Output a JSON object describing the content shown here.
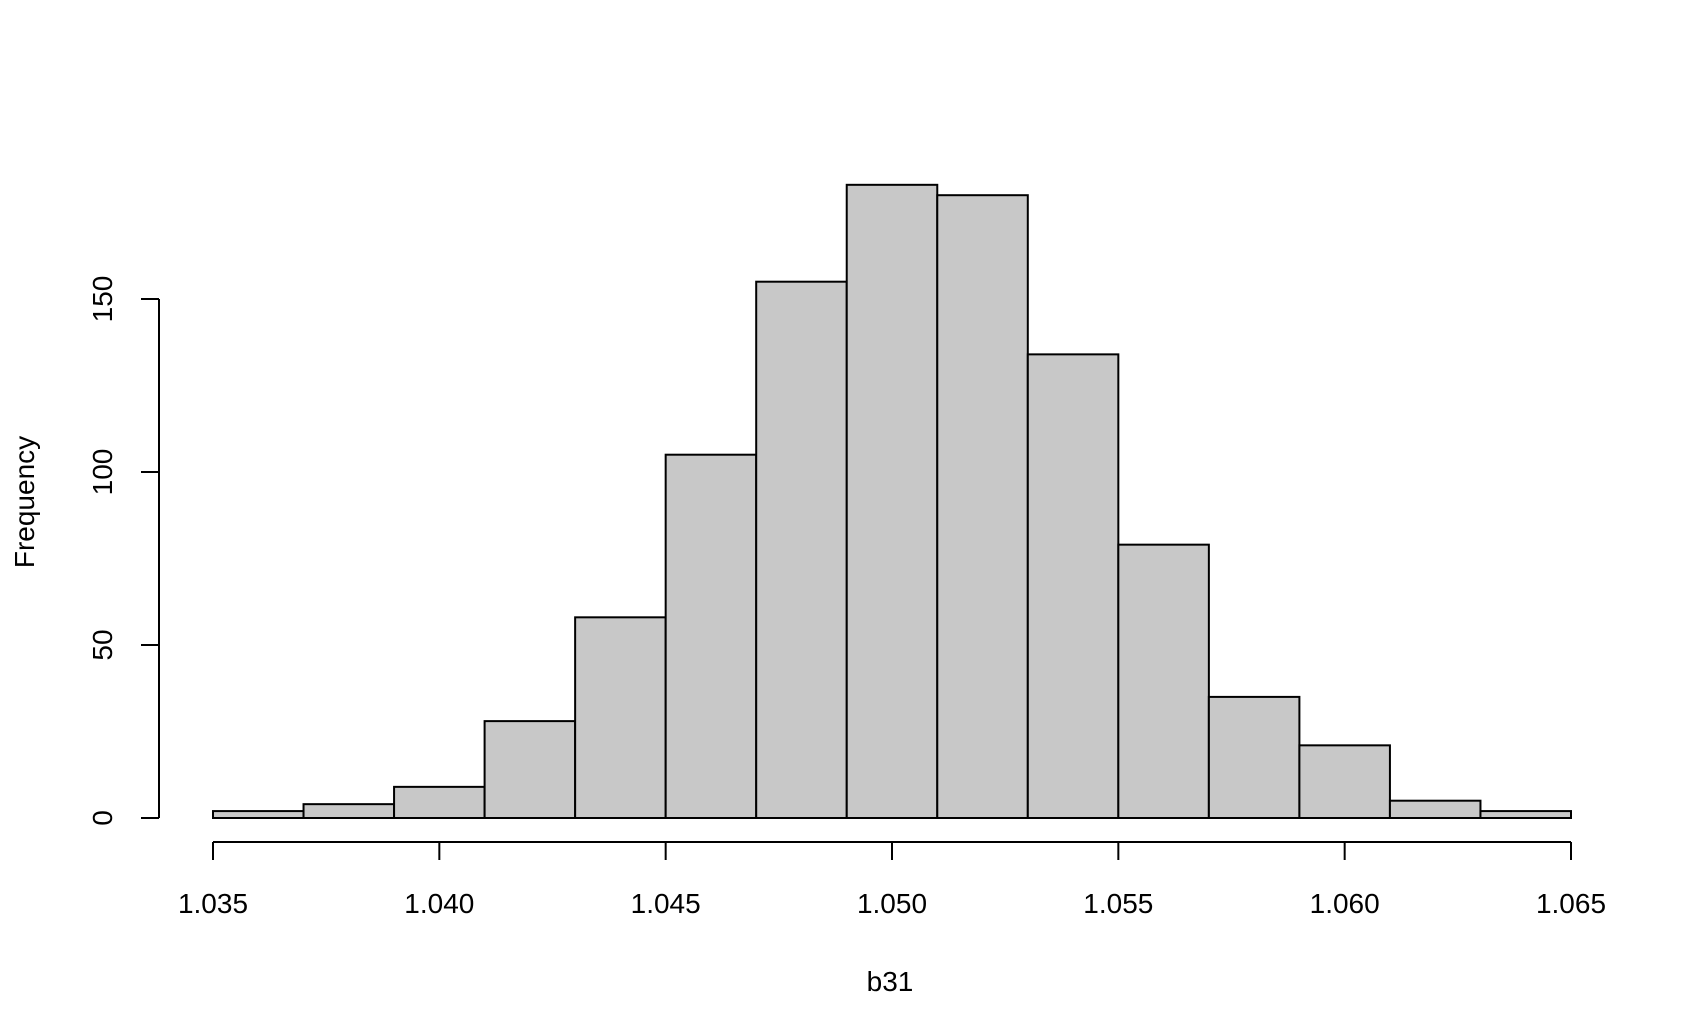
{
  "chart_data": {
    "type": "bar",
    "title": "",
    "xlabel": "b31",
    "ylabel": "Frequency",
    "bins": [
      {
        "x0": 1.035,
        "x1": 1.037,
        "count": 2
      },
      {
        "x0": 1.037,
        "x1": 1.039,
        "count": 4
      },
      {
        "x0": 1.039,
        "x1": 1.041,
        "count": 9
      },
      {
        "x0": 1.041,
        "x1": 1.043,
        "count": 28
      },
      {
        "x0": 1.043,
        "x1": 1.045,
        "count": 58
      },
      {
        "x0": 1.045,
        "x1": 1.047,
        "count": 105
      },
      {
        "x0": 1.047,
        "x1": 1.049,
        "count": 155
      },
      {
        "x0": 1.049,
        "x1": 1.051,
        "count": 183
      },
      {
        "x0": 1.051,
        "x1": 1.053,
        "count": 180
      },
      {
        "x0": 1.053,
        "x1": 1.055,
        "count": 134
      },
      {
        "x0": 1.055,
        "x1": 1.057,
        "count": 79
      },
      {
        "x0": 1.057,
        "x1": 1.059,
        "count": 35
      },
      {
        "x0": 1.059,
        "x1": 1.061,
        "count": 21
      },
      {
        "x0": 1.061,
        "x1": 1.063,
        "count": 5
      },
      {
        "x0": 1.063,
        "x1": 1.065,
        "count": 2
      }
    ],
    "xlim": [
      1.035,
      1.065
    ],
    "ylim": [
      0,
      183
    ],
    "xticks": [
      1.035,
      1.04,
      1.045,
      1.05,
      1.055,
      1.06,
      1.065
    ],
    "xtick_labels": [
      "1.035",
      "1.040",
      "1.045",
      "1.050",
      "1.055",
      "1.060",
      "1.065"
    ],
    "yticks": [
      0,
      50,
      100,
      150
    ],
    "ytick_labels": [
      "0",
      "50",
      "100",
      "150"
    ],
    "bar_color": "#c8c8c8",
    "edge_color": "#000000",
    "grid": false
  }
}
